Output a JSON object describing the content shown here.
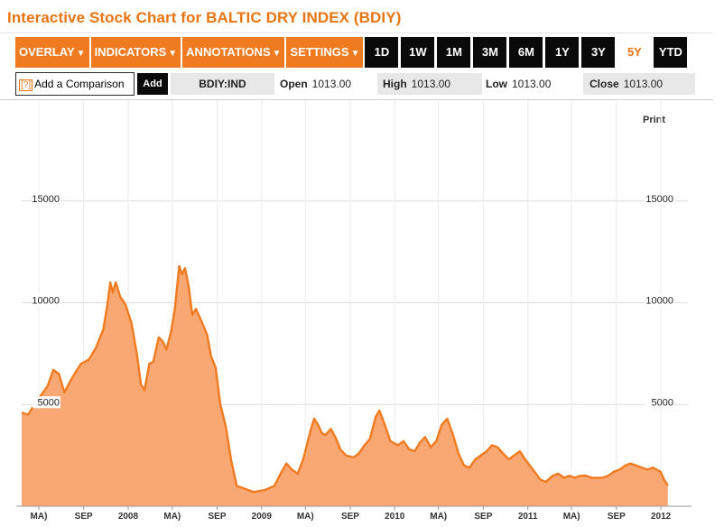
{
  "title": "Interactive Stock Chart for BALTIC DRY INDEX (BDIY)",
  "toolbar": {
    "menus": [
      "OVERLAY",
      "INDICATORS",
      "ANNOTATIONS",
      "SETTINGS"
    ],
    "periods": [
      "1D",
      "1W",
      "1M",
      "3M",
      "6M",
      "1Y",
      "3Y",
      "5Y",
      "YTD"
    ],
    "active_period": "5Y"
  },
  "compare": {
    "help": "[?]",
    "placeholder": "Add a Comparison",
    "add_label": "Add"
  },
  "quote": {
    "ticker": "BDIY:IND",
    "open_label": "Open",
    "open": "1013.00",
    "high_label": "High",
    "high": "1013.00",
    "low_label": "Low",
    "low": "1013.00",
    "close_label": "Close",
    "close": "1013.00"
  },
  "print_label": "Print",
  "colors": {
    "accent": "#f07a1f",
    "line": "#f07a1f",
    "fill": "#f9a874"
  },
  "chart_data": {
    "type": "area",
    "yticks": [
      5000,
      10000,
      15000
    ],
    "ylim": [
      0,
      20000
    ],
    "xlim": [
      "2007-03-15",
      "2012-03-15"
    ],
    "xticks": [
      {
        "label": "MA)",
        "x": "2007-05-01"
      },
      {
        "label": "SEP",
        "x": "2007-09-01"
      },
      {
        "label": "2008",
        "x": "2008-01-01"
      },
      {
        "label": "MA)",
        "x": "2008-05-01"
      },
      {
        "label": "SEP",
        "x": "2008-09-01"
      },
      {
        "label": "2009",
        "x": "2009-01-01"
      },
      {
        "label": "MA)",
        "x": "2009-05-01"
      },
      {
        "label": "SEP",
        "x": "2009-09-01"
      },
      {
        "label": "2010",
        "x": "2010-01-01"
      },
      {
        "label": "MA)",
        "x": "2010-05-01"
      },
      {
        "label": "SEP",
        "x": "2010-09-01"
      },
      {
        "label": "2011",
        "x": "2011-01-01"
      },
      {
        "label": "MA)",
        "x": "2011-05-01"
      },
      {
        "label": "SEP",
        "x": "2011-09-01"
      },
      {
        "label": "2012",
        "x": "2012-01-01"
      }
    ],
    "series": [
      {
        "values": [
          [
            "2007-03-15",
            4600
          ],
          [
            "2007-04-01",
            4500
          ],
          [
            "2007-04-20",
            5000
          ],
          [
            "2007-05-05",
            5400
          ],
          [
            "2007-05-25",
            5900
          ],
          [
            "2007-06-10",
            6700
          ],
          [
            "2007-06-25",
            6500
          ],
          [
            "2007-07-10",
            5600
          ],
          [
            "2007-07-25",
            6100
          ],
          [
            "2007-08-10",
            6600
          ],
          [
            "2007-08-25",
            7000
          ],
          [
            "2007-09-15",
            7200
          ],
          [
            "2007-10-05",
            7800
          ],
          [
            "2007-10-25",
            8700
          ],
          [
            "2007-11-05",
            9900
          ],
          [
            "2007-11-13",
            11000
          ],
          [
            "2007-11-20",
            10500
          ],
          [
            "2007-11-28",
            11000
          ],
          [
            "2007-12-10",
            10300
          ],
          [
            "2007-12-25",
            9900
          ],
          [
            "2008-01-10",
            9000
          ],
          [
            "2008-01-25",
            7500
          ],
          [
            "2008-02-05",
            6000
          ],
          [
            "2008-02-15",
            5700
          ],
          [
            "2008-02-28",
            7000
          ],
          [
            "2008-03-10",
            7100
          ],
          [
            "2008-03-25",
            8300
          ],
          [
            "2008-04-05",
            8100
          ],
          [
            "2008-04-15",
            7700
          ],
          [
            "2008-04-28",
            8600
          ],
          [
            "2008-05-08",
            9700
          ],
          [
            "2008-05-20",
            11800
          ],
          [
            "2008-05-28",
            11400
          ],
          [
            "2008-06-05",
            11700
          ],
          [
            "2008-06-15",
            10800
          ],
          [
            "2008-06-25",
            9400
          ],
          [
            "2008-07-05",
            9700
          ],
          [
            "2008-07-20",
            9100
          ],
          [
            "2008-08-05",
            8400
          ],
          [
            "2008-08-15",
            7400
          ],
          [
            "2008-08-28",
            6800
          ],
          [
            "2008-09-10",
            5000
          ],
          [
            "2008-09-25",
            3900
          ],
          [
            "2008-10-10",
            2200
          ],
          [
            "2008-10-25",
            1000
          ],
          [
            "2008-11-10",
            900
          ],
          [
            "2008-11-25",
            800
          ],
          [
            "2008-12-10",
            700
          ],
          [
            "2009-01-10",
            800
          ],
          [
            "2009-02-05",
            1000
          ],
          [
            "2009-02-25",
            1700
          ],
          [
            "2009-03-10",
            2100
          ],
          [
            "2009-03-25",
            1800
          ],
          [
            "2009-04-10",
            1600
          ],
          [
            "2009-04-25",
            2300
          ],
          [
            "2009-05-05",
            3000
          ],
          [
            "2009-05-15",
            3700
          ],
          [
            "2009-05-25",
            4300
          ],
          [
            "2009-06-05",
            4000
          ],
          [
            "2009-06-15",
            3600
          ],
          [
            "2009-06-25",
            3500
          ],
          [
            "2009-07-10",
            3800
          ],
          [
            "2009-07-25",
            3300
          ],
          [
            "2009-08-05",
            2800
          ],
          [
            "2009-08-20",
            2500
          ],
          [
            "2009-09-10",
            2400
          ],
          [
            "2009-09-25",
            2600
          ],
          [
            "2009-10-10",
            3000
          ],
          [
            "2009-10-25",
            3300
          ],
          [
            "2009-11-10",
            4400
          ],
          [
            "2009-11-20",
            4700
          ],
          [
            "2009-12-05",
            4000
          ],
          [
            "2009-12-20",
            3200
          ],
          [
            "2010-01-10",
            3000
          ],
          [
            "2010-01-25",
            3200
          ],
          [
            "2010-02-10",
            2800
          ],
          [
            "2010-02-25",
            2700
          ],
          [
            "2010-03-10",
            3100
          ],
          [
            "2010-03-25",
            3400
          ],
          [
            "2010-04-10",
            2900
          ],
          [
            "2010-04-25",
            3200
          ],
          [
            "2010-05-10",
            4000
          ],
          [
            "2010-05-25",
            4300
          ],
          [
            "2010-06-10",
            3500
          ],
          [
            "2010-06-25",
            2600
          ],
          [
            "2010-07-10",
            2000
          ],
          [
            "2010-07-25",
            1900
          ],
          [
            "2010-08-10",
            2300
          ],
          [
            "2010-08-25",
            2500
          ],
          [
            "2010-09-10",
            2700
          ],
          [
            "2010-09-25",
            3000
          ],
          [
            "2010-10-10",
            2900
          ],
          [
            "2010-10-25",
            2600
          ],
          [
            "2010-11-10",
            2300
          ],
          [
            "2010-11-25",
            2500
          ],
          [
            "2010-12-10",
            2700
          ],
          [
            "2010-12-25",
            2300
          ],
          [
            "2011-01-15",
            1800
          ],
          [
            "2011-02-05",
            1300
          ],
          [
            "2011-02-20",
            1200
          ],
          [
            "2011-03-10",
            1500
          ],
          [
            "2011-03-25",
            1600
          ],
          [
            "2011-04-10",
            1400
          ],
          [
            "2011-04-25",
            1500
          ],
          [
            "2011-05-10",
            1400
          ],
          [
            "2011-05-25",
            1500
          ],
          [
            "2011-06-10",
            1500
          ],
          [
            "2011-06-25",
            1400
          ],
          [
            "2011-07-10",
            1400
          ],
          [
            "2011-07-25",
            1400
          ],
          [
            "2011-08-10",
            1500
          ],
          [
            "2011-08-25",
            1700
          ],
          [
            "2011-09-10",
            1800
          ],
          [
            "2011-09-25",
            2000
          ],
          [
            "2011-10-10",
            2100
          ],
          [
            "2011-10-25",
            2000
          ],
          [
            "2011-11-10",
            1900
          ],
          [
            "2011-11-25",
            1800
          ],
          [
            "2011-12-10",
            1900
          ],
          [
            "2011-12-20",
            1800
          ],
          [
            "2011-12-31",
            1700
          ],
          [
            "2012-01-10",
            1300
          ],
          [
            "2012-01-20",
            1013
          ]
        ]
      }
    ]
  }
}
